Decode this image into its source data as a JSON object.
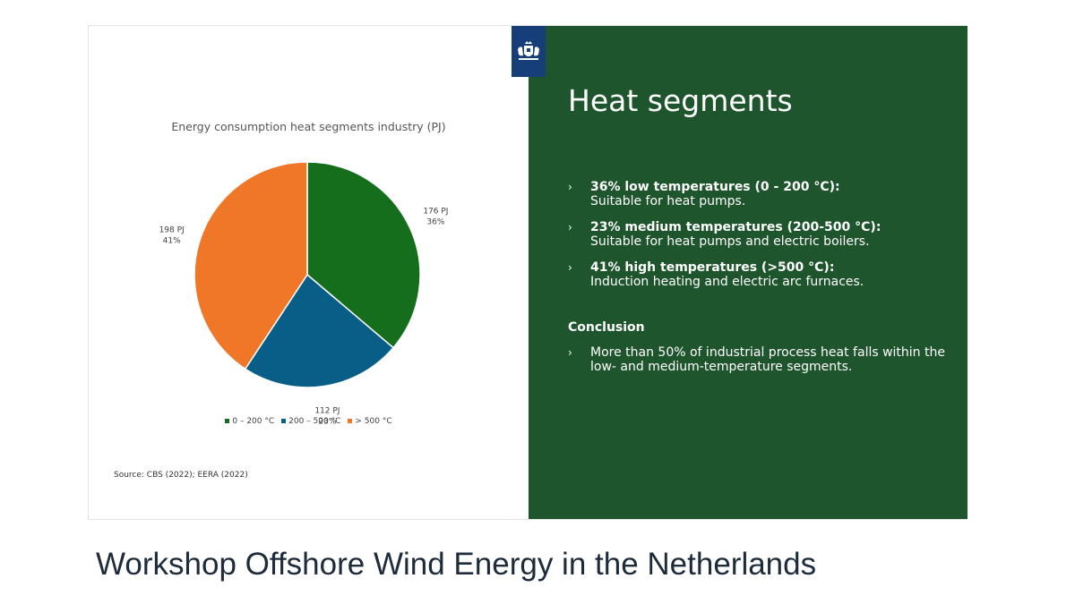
{
  "slide": {
    "chart": {
      "chart_data": {
        "type": "pie",
        "title": "Energy consumption heat segments industry (PJ)",
        "slices": [
          {
            "name": "0 – 200 °C",
            "value": 176,
            "percent": 36,
            "label_value": "176 PJ",
            "label_percent": "36%",
            "color": "#146e1c"
          },
          {
            "name": "200 – 500 °C",
            "value": 112,
            "percent": 23,
            "label_value": "112 PJ",
            "label_percent": "23%",
            "color": "#085e86"
          },
          {
            "name": "> 500 °C",
            "value": 198,
            "percent": 41,
            "label_value": "198 PJ",
            "label_percent": "41%",
            "color": "#f07628"
          }
        ],
        "legend_position": "bottom"
      },
      "source": "Source: CBS (2022); EERA (2022)"
    },
    "panel": {
      "emblem_icon": "netherlands-coat-of-arms-icon",
      "heading": "Heat segments",
      "bullets": [
        {
          "head": "36% low temperatures (0 - 200 °C):",
          "body": "Suitable for heat pumps."
        },
        {
          "head": "23% medium temperatures (200-500 °C):",
          "body": "Suitable for heat pumps and electric boilers."
        },
        {
          "head": "41% high temperatures (>500 °C):",
          "body": "Induction heating and electric arc furnaces."
        }
      ],
      "bullet_marker": "›",
      "conclusion_title": "Conclusion",
      "conclusion_text": "More than 50% of industrial process heat falls within the low- and medium-temperature segments.",
      "background_color": "#1e552d"
    }
  },
  "page_title": "Workshop Offshore Wind Energy in the Netherlands"
}
